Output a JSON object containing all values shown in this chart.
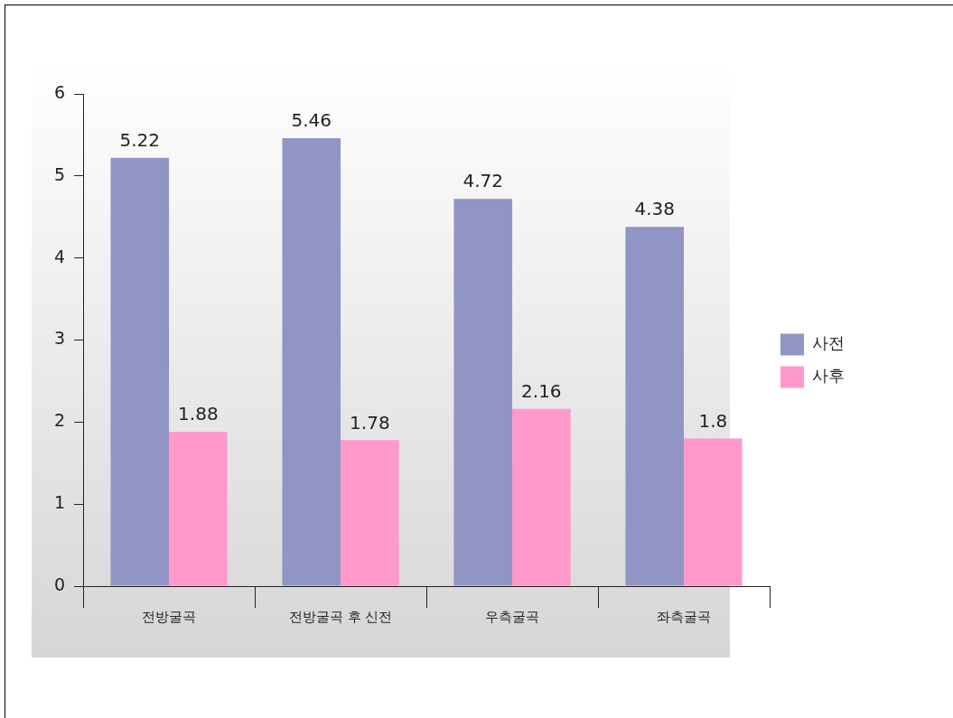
{
  "chart_data": {
    "type": "bar",
    "categories": [
      "전방굴곡",
      "전방굴곡 후 신전",
      "우측굴곡",
      "좌측굴곡"
    ],
    "series": [
      {
        "name": "사전",
        "color": "#9095c5",
        "values": [
          5.22,
          5.46,
          4.72,
          4.38
        ]
      },
      {
        "name": "사후",
        "color": "#ff99cc",
        "values": [
          1.88,
          1.78,
          2.16,
          1.8
        ]
      }
    ],
    "ylim": [
      0,
      6
    ],
    "yticks": [
      0,
      1,
      2,
      3,
      4,
      5,
      6
    ],
    "grid": false,
    "legend": "right",
    "data_labels": true
  }
}
